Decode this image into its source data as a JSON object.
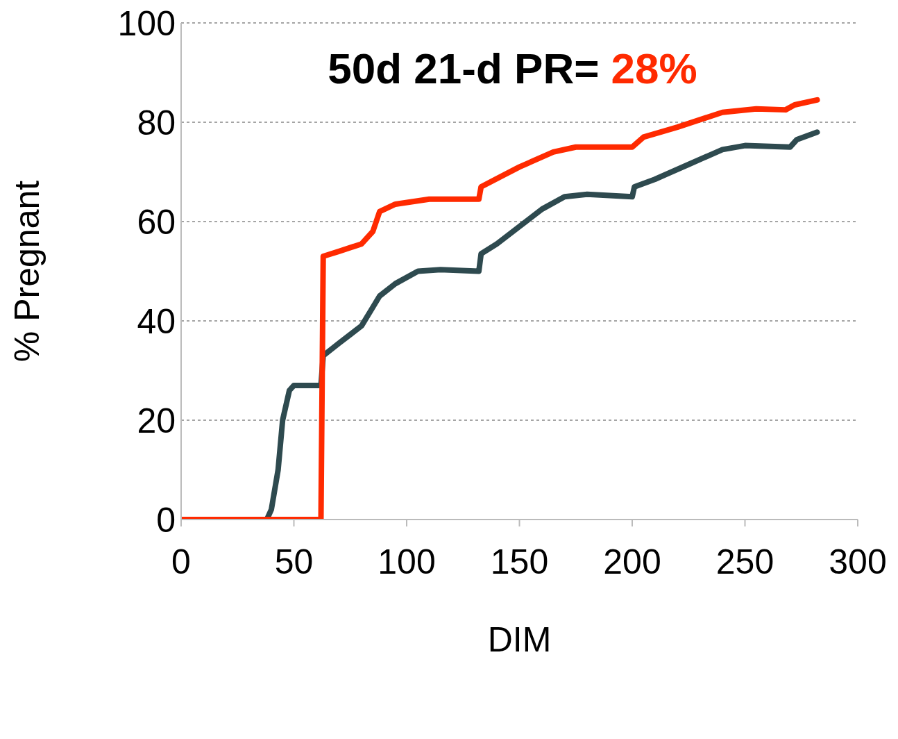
{
  "chart_data": {
    "type": "line",
    "xlabel": "DIM",
    "ylabel": "% Pregnant",
    "annotations": [
      "50d 21-d PR=",
      "28%"
    ],
    "xlim": [
      0,
      300
    ],
    "xticks": [
      0,
      50,
      100,
      150,
      200,
      250,
      300
    ],
    "ylim": [
      0,
      100
    ],
    "yticks": [
      0,
      20,
      40,
      60,
      80,
      100
    ],
    "grid": "y",
    "marker": "none",
    "line_style": "solid",
    "series": [
      {
        "color": "#ff2a00",
        "x": [
          0,
          62,
          63,
          70,
          80,
          85,
          88,
          95,
          110,
          132,
          133,
          150,
          165,
          175,
          200,
          205,
          220,
          240,
          255,
          268,
          272,
          282
        ],
        "values": [
          0,
          0,
          53,
          54,
          55.5,
          58,
          62,
          63.5,
          64.5,
          64.5,
          67,
          71,
          74,
          75,
          75,
          77,
          79,
          82,
          82.7,
          82.5,
          83.5,
          84.5
        ]
      },
      {
        "color": "#2e4a4f",
        "x": [
          0,
          38,
          40,
          43,
          45,
          48,
          50,
          61,
          62,
          63,
          70,
          80,
          84,
          88,
          95,
          105,
          115,
          132,
          133,
          140,
          150,
          160,
          170,
          180,
          200,
          201,
          210,
          225,
          240,
          250,
          270,
          273,
          282
        ],
        "values": [
          0,
          0,
          2,
          10,
          20,
          26,
          27,
          27,
          27,
          33,
          35.5,
          39,
          42,
          45,
          47.5,
          50,
          50.3,
          50,
          53.5,
          55.5,
          59,
          62.5,
          65,
          65.5,
          65,
          67,
          68.5,
          71.5,
          74.5,
          75.3,
          75,
          76.5,
          78
        ]
      }
    ]
  }
}
